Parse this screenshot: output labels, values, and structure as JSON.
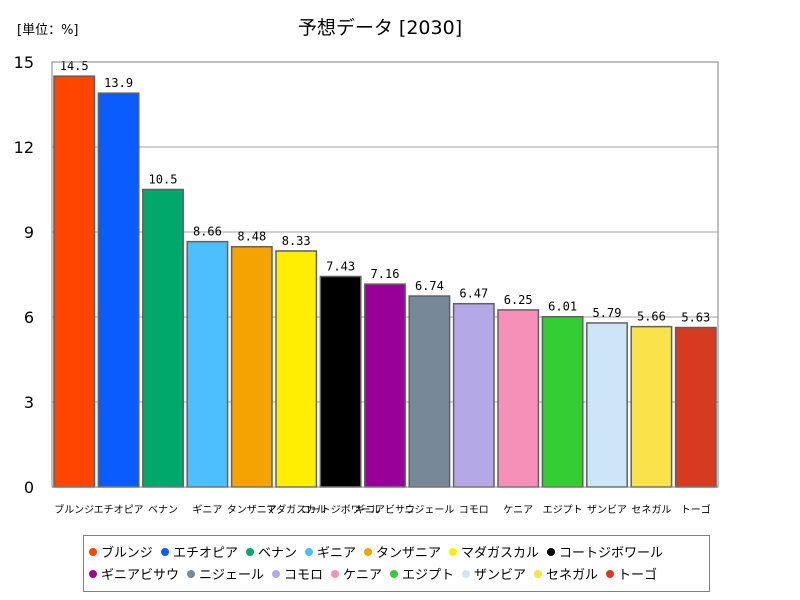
{
  "chart_data": {
    "type": "bar",
    "title": "予想データ [2030]",
    "unit_label": "[単位：%]",
    "ylim": [
      0,
      15
    ],
    "yticks": [
      "0",
      "3",
      "6",
      "9",
      "12",
      "15"
    ],
    "grid": true,
    "legend_position": "bottom",
    "categories": [
      "ブルンジ",
      "エチオピア",
      "ベナン",
      "ギニア",
      "タンザニア",
      "マダガスカル",
      "コートジボワール",
      "ギニアビサウ",
      "ニジェール",
      "コモロ",
      "ケニア",
      "エジプト",
      "ザンビア",
      "セネガル",
      "トーゴ"
    ],
    "values": [
      14.5,
      13.9,
      10.5,
      8.66,
      8.48,
      8.33,
      7.43,
      7.16,
      6.74,
      6.47,
      6.25,
      6.01,
      5.79,
      5.66,
      5.63
    ],
    "value_labels": [
      "14.5",
      "13.9",
      "10.5",
      "8.66",
      "8.48",
      "8.33",
      "7.43",
      "7.16",
      "6.74",
      "6.47",
      "6.25",
      "6.01",
      "5.79",
      "5.66",
      "5.63"
    ],
    "colors": [
      "#ff4500",
      "#0a5cff",
      "#00a86b",
      "#4dbfff",
      "#f5a300",
      "#ffee00",
      "#000000",
      "#990099",
      "#778899",
      "#b4a8e6",
      "#f790b8",
      "#33cc33",
      "#cce6f8",
      "#fae24a",
      "#d63a1f"
    ]
  }
}
